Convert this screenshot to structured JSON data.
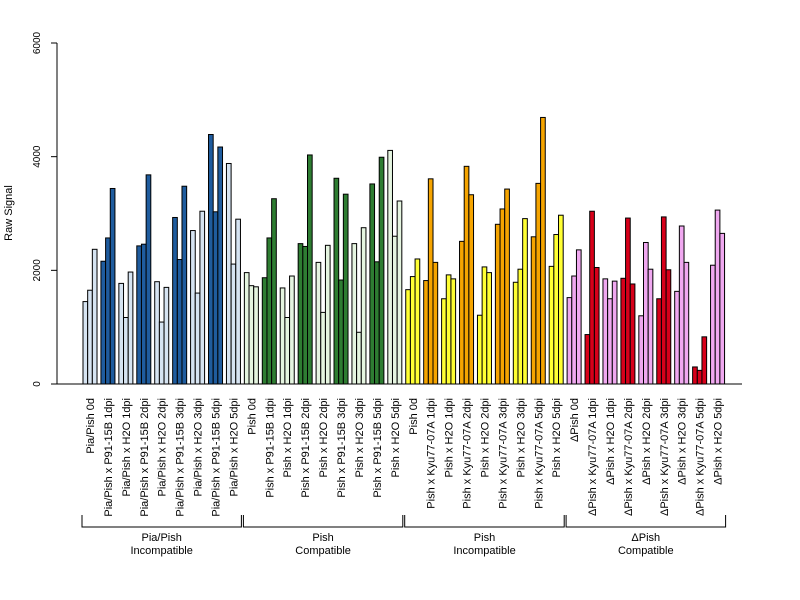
{
  "chart_data": {
    "type": "bar",
    "ylabel": "Raw Signal",
    "ylim": [
      0,
      6000
    ],
    "yticks": [
      0,
      2000,
      4000,
      6000
    ],
    "grid": false,
    "categories": [
      "Pia/Pish 0d",
      "Pia/Pish x P91-15B 1dpi",
      "Pia/Pish x H2O 1dpi",
      "Pia/Pish x P91-15B 2dpi",
      "Pia/Pish x H2O 2dpi",
      "Pia/Pish x P91-15B 3dpi",
      "Pia/Pish x H2O 3dpi",
      "Pia/Pish x P91-15B 5dpi",
      "Pia/Pish x H2O 5dpi",
      "Pish 0d",
      "Pish x P91-15B 1dpi",
      "Pish x H2O 1dpi",
      "Pish x P91-15B 2dpi",
      "Pish x H2O 2dpi",
      "Pish x P91-15B 3dpi",
      "Pish x H2O 3dpi",
      "Pish x P91-15B 5dpi",
      "Pish x H2O 5dpi",
      "Pish 0d",
      "Pish x Kyu77-07A 1dpi",
      "Pish x H2O 1dpi",
      "Pish x Kyu77-07A 2dpi",
      "Pish x H2O 2dpi",
      "Pish x Kyu77-07A 3dpi",
      "Pish x H2O 3dpi",
      "Pish x Kyu77-07A 5dpi",
      "Pish x H2O 5dpi",
      "ΔPish 0d",
      "ΔPish x Kyu77-07A 1dpi",
      "ΔPish x H2O 1dpi",
      "ΔPish x Kyu77-07A 2dpi",
      "ΔPish x H2O 2dpi",
      "ΔPish x Kyu77-07A 3dpi",
      "ΔPish x H2O 3dpi",
      "ΔPish x Kyu77-07A 5dpi",
      "ΔPish x H2O 5dpi"
    ],
    "colors": {
      "pale_blue": "#d6e4f2",
      "dark_blue": "#1f5c9e",
      "pale_green": "#e5f5e0",
      "dark_green": "#2e7d32",
      "yellow": "#ffff33",
      "orange": "#f5a400",
      "pink": "#f0a8f0",
      "red": "#d7001a"
    },
    "category_colors": [
      "pale_blue",
      "dark_blue",
      "pale_blue",
      "dark_blue",
      "pale_blue",
      "dark_blue",
      "pale_blue",
      "dark_blue",
      "pale_blue",
      "pale_green",
      "dark_green",
      "pale_green",
      "dark_green",
      "pale_green",
      "dark_green",
      "pale_green",
      "dark_green",
      "pale_green",
      "yellow",
      "orange",
      "yellow",
      "orange",
      "yellow",
      "orange",
      "yellow",
      "orange",
      "yellow",
      "pink",
      "red",
      "pink",
      "red",
      "pink",
      "red",
      "pink",
      "red",
      "pink"
    ],
    "values": [
      [
        1450,
        1650,
        2370
      ],
      [
        2160,
        2570,
        3440
      ],
      [
        1770,
        1170,
        1970
      ],
      [
        2430,
        2460,
        3680
      ],
      [
        1800,
        1090,
        1700
      ],
      [
        2930,
        2190,
        3480
      ],
      [
        2700,
        1600,
        3040
      ],
      [
        4390,
        3030,
        4170
      ],
      [
        3880,
        2110,
        2900
      ],
      [
        1960,
        1730,
        1710
      ],
      [
        1870,
        2570,
        3260
      ],
      [
        1690,
        1170,
        1900
      ],
      [
        2470,
        2420,
        4030
      ],
      [
        2140,
        1260,
        2440
      ],
      [
        3620,
        1830,
        3340
      ],
      [
        2470,
        910,
        2750
      ],
      [
        3520,
        2150,
        3990
      ],
      [
        4110,
        2600,
        3220
      ],
      [
        1660,
        1890,
        2200
      ],
      [
        1820,
        3610,
        2140
      ],
      [
        1500,
        1920,
        1850
      ],
      [
        2510,
        3830,
        3330
      ],
      [
        1210,
        2060,
        1960
      ],
      [
        2810,
        3080,
        3430
      ],
      [
        1790,
        2020,
        2910
      ],
      [
        2590,
        3530,
        4690
      ],
      [
        2070,
        2630,
        2970
      ],
      [
        1520,
        1900,
        2360
      ],
      [
        870,
        3040,
        2050
      ],
      [
        1850,
        1500,
        1810
      ],
      [
        1860,
        2920,
        1760
      ],
      [
        1200,
        2490,
        2020
      ],
      [
        1500,
        2940,
        2010
      ],
      [
        1630,
        2780,
        2140
      ],
      [
        300,
        240,
        830
      ],
      [
        2090,
        3060,
        2650
      ]
    ],
    "groups": [
      {
        "line1": "Pia/Pish",
        "line2": "Incompatible",
        "start": 0,
        "end": 8
      },
      {
        "line1": "Pish",
        "line2": "Compatible",
        "start": 9,
        "end": 17
      },
      {
        "line1": "Pish",
        "line2": "Incompatible",
        "start": 18,
        "end": 26
      },
      {
        "line1": "ΔPish",
        "line2": "Compatible",
        "start": 27,
        "end": 35
      }
    ]
  }
}
